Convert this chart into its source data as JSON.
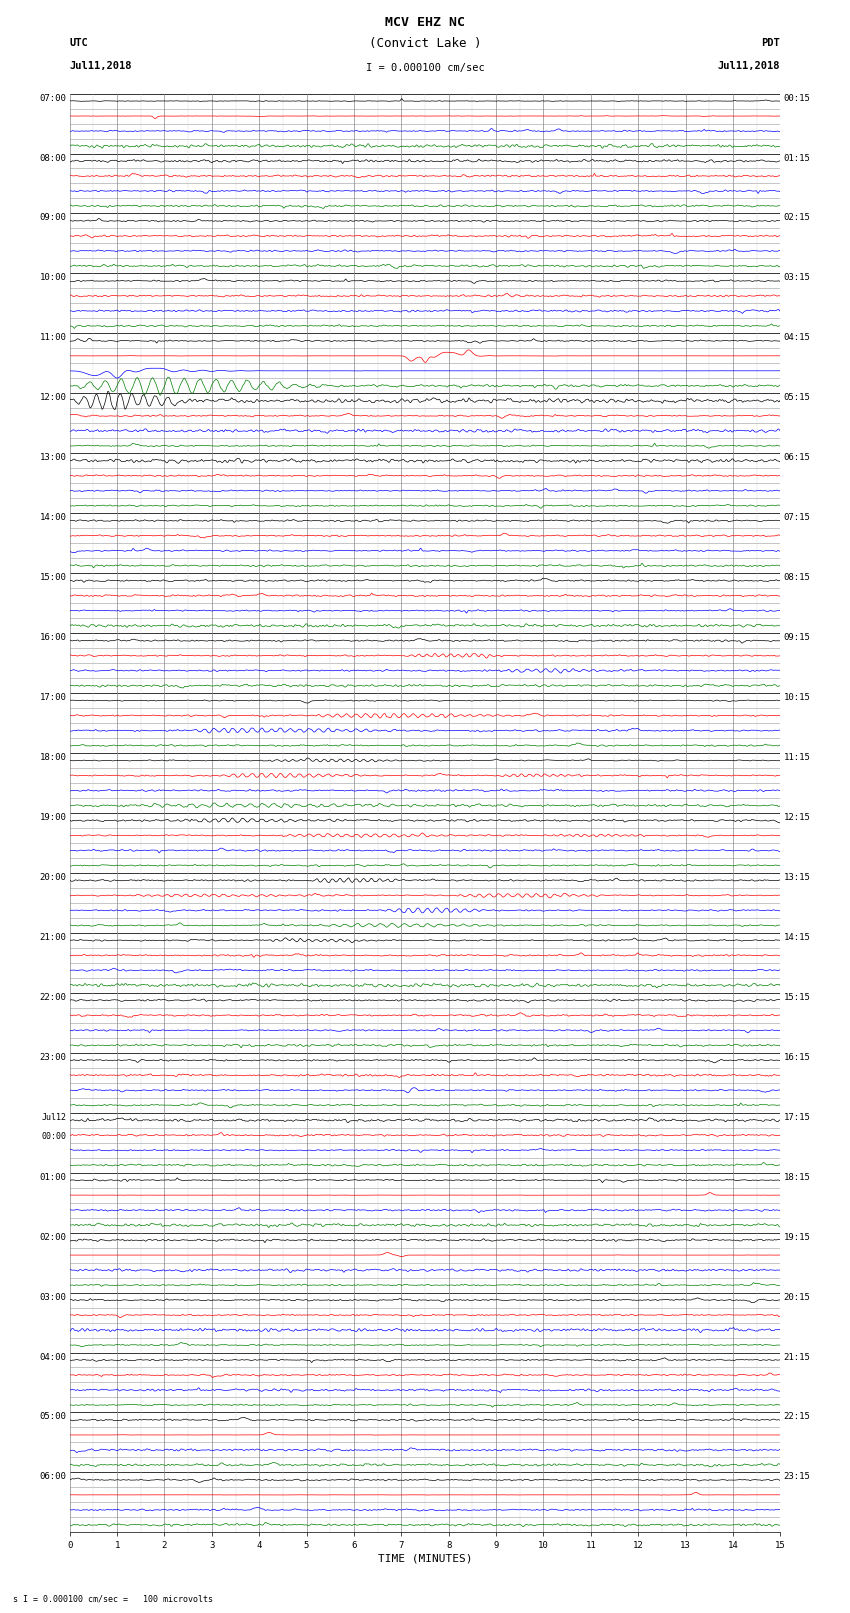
{
  "title_line1": "MCV EHZ NC",
  "title_line2": "(Convict Lake )",
  "scale_text": "I = 0.000100 cm/sec",
  "footer_text": "s I = 0.000100 cm/sec =   100 microvolts",
  "left_header": "UTC",
  "left_date": "Jul11,2018",
  "right_header": "PDT",
  "right_date": "Jul11,2018",
  "xlabel": "TIME (MINUTES)",
  "xmin": 0,
  "xmax": 15,
  "bg_color": "#ffffff",
  "grid_minor_color": "#999999",
  "grid_major_color": "#333333",
  "title_fontsize": 9,
  "label_fontsize": 7.5,
  "tick_fontsize": 6.5,
  "n_rows": 96,
  "utc_labels_hourly": {
    "0": "07:00",
    "4": "08:00",
    "8": "09:00",
    "12": "10:00",
    "16": "11:00",
    "20": "12:00",
    "24": "13:00",
    "28": "14:00",
    "32": "15:00",
    "36": "16:00",
    "40": "17:00",
    "44": "18:00",
    "48": "19:00",
    "52": "20:00",
    "56": "21:00",
    "60": "22:00",
    "64": "23:00",
    "68": "Jul12\n00:00",
    "72": "01:00",
    "76": "02:00",
    "80": "03:00",
    "84": "04:00",
    "88": "05:00",
    "92": "06:00"
  },
  "pdt_labels_hourly": {
    "0": "00:15",
    "4": "01:15",
    "8": "02:15",
    "12": "03:15",
    "16": "04:15",
    "20": "05:15",
    "24": "06:15",
    "28": "07:15",
    "32": "08:15",
    "36": "09:15",
    "40": "10:15",
    "44": "11:15",
    "48": "12:15",
    "52": "13:15",
    "56": "14:15",
    "60": "15:15",
    "64": "16:15",
    "68": "17:15",
    "72": "18:15",
    "76": "19:15",
    "80": "20:15",
    "84": "21:15",
    "88": "22:15",
    "92": "23:15"
  }
}
